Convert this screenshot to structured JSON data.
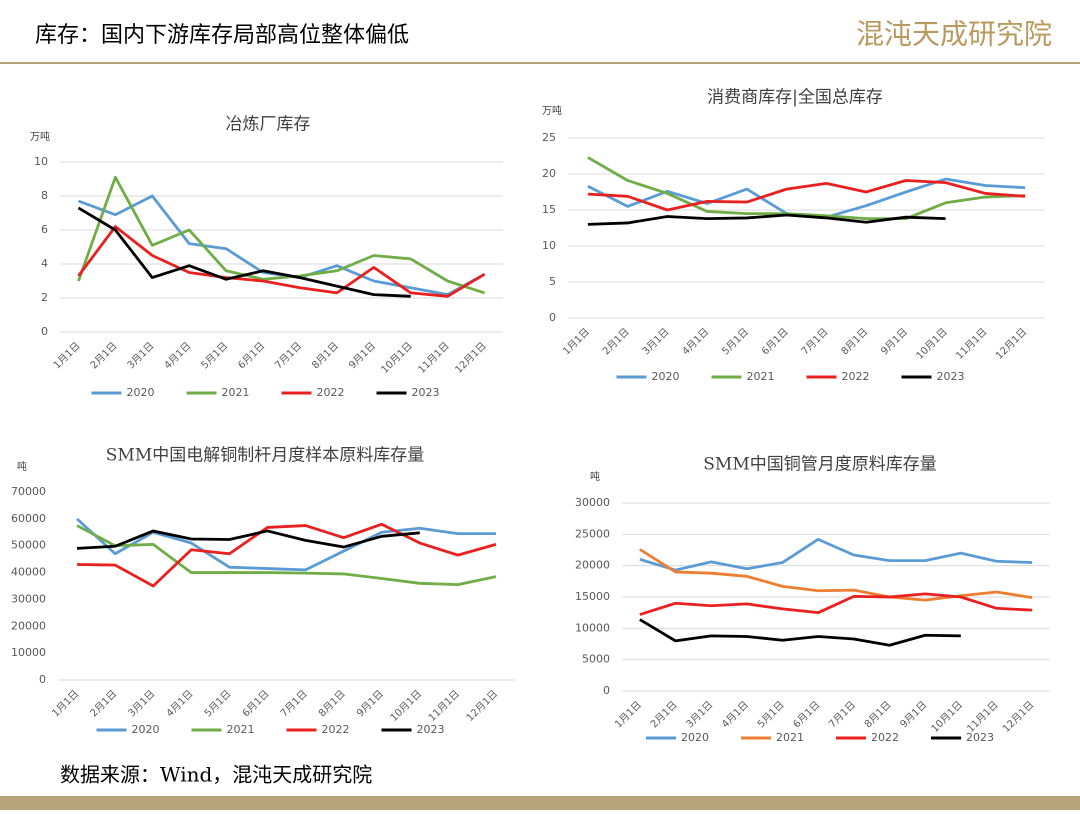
{
  "header": {
    "title": "库存：国内下游库存局部高位整体偏低",
    "logo": "混沌天成研究院"
  },
  "footer": {
    "source": "数据来源：Wind，混沌天成研究院"
  },
  "chart_data": [
    {
      "type": "line",
      "title": "冶炼厂库存",
      "ylabel": "万吨",
      "categories": [
        "1月1日",
        "2月1日",
        "3月1日",
        "4月1日",
        "5月1日",
        "6月1日",
        "7月1日",
        "8月1日",
        "9月1日",
        "10月1日",
        "11月1日",
        "12月1日"
      ],
      "ylim": [
        0,
        10
      ],
      "yticks": [
        0,
        2,
        4,
        6,
        8,
        10
      ],
      "grid": true,
      "legend": "bottom",
      "series": [
        {
          "name": "2020",
          "color": "#5b9bd5",
          "values": [
            7.7,
            6.9,
            8.0,
            5.2,
            4.9,
            3.5,
            3.2,
            3.9,
            3.0,
            2.6,
            2.2,
            3.4
          ]
        },
        {
          "name": "2021",
          "color": "#70ad47",
          "values": [
            3.0,
            9.1,
            5.1,
            6.0,
            3.6,
            3.1,
            3.3,
            3.6,
            4.5,
            4.3,
            3.0,
            2.3
          ]
        },
        {
          "name": "2022",
          "color": "#e8201f",
          "values": [
            3.3,
            6.2,
            4.5,
            3.5,
            3.2,
            3.0,
            2.6,
            2.3,
            3.8,
            2.3,
            2.1,
            3.4
          ]
        },
        {
          "name": "2023",
          "color": "#000000",
          "values": [
            7.3,
            6.0,
            3.2,
            3.9,
            3.1,
            3.6,
            3.2,
            2.7,
            2.2,
            2.1,
            null,
            null
          ]
        }
      ]
    },
    {
      "type": "line",
      "title": "消费商库存|全国总库存",
      "ylabel": "万吨",
      "categories": [
        "1月1日",
        "2月1日",
        "3月1日",
        "4月1日",
        "5月1日",
        "6月1日",
        "7月1日",
        "8月1日",
        "9月1日",
        "10月1日",
        "11月1日",
        "12月1日"
      ],
      "ylim": [
        0,
        25
      ],
      "yticks": [
        0,
        5,
        10,
        15,
        20,
        25
      ],
      "grid": true,
      "legend": "bottom",
      "series": [
        {
          "name": "2020",
          "color": "#5b9bd5",
          "values": [
            18.3,
            15.5,
            17.6,
            15.9,
            17.9,
            14.5,
            14.0,
            15.6,
            17.5,
            19.3,
            18.4,
            18.1
          ]
        },
        {
          "name": "2021",
          "color": "#70ad47",
          "values": [
            22.3,
            19.1,
            17.3,
            14.8,
            14.5,
            14.5,
            14.2,
            13.8,
            13.8,
            16.0,
            16.8,
            17.0
          ]
        },
        {
          "name": "2022",
          "color": "#e8201f",
          "values": [
            17.2,
            16.9,
            15.0,
            16.2,
            16.1,
            17.9,
            18.7,
            17.5,
            19.1,
            18.8,
            17.3,
            16.9
          ]
        },
        {
          "name": "2023",
          "color": "#000000",
          "values": [
            13.0,
            13.2,
            14.1,
            13.8,
            13.9,
            14.3,
            13.9,
            13.3,
            14.0,
            13.8,
            null,
            null
          ]
        }
      ]
    },
    {
      "type": "line",
      "title": "SMM中国电解铜制杆月度样本原料库存量",
      "ylabel": "吨",
      "categories": [
        "1月1日",
        "2月1日",
        "3月1日",
        "4月1日",
        "5月1日",
        "6月1日",
        "7月1日",
        "8月1日",
        "9月1日",
        "10月1日",
        "11月1日",
        "12月1日"
      ],
      "ylim": [
        0,
        70000
      ],
      "yticks": [
        0,
        10000,
        20000,
        30000,
        40000,
        50000,
        60000,
        70000
      ],
      "grid": false,
      "legend": "bottom",
      "series": [
        {
          "name": "2020",
          "color": "#5b9bd5",
          "values": [
            60000,
            47000,
            55000,
            51000,
            42000,
            41500,
            41000,
            48000,
            55000,
            56500,
            54500,
            54500
          ]
        },
        {
          "name": "2021",
          "color": "#70ad47",
          "values": [
            57500,
            50000,
            50500,
            40000,
            40000,
            40000,
            39800,
            39500,
            37800,
            36000,
            35500,
            38500
          ]
        },
        {
          "name": "2022",
          "color": "#e8201f",
          "values": [
            43000,
            42800,
            35000,
            48500,
            47000,
            56800,
            57500,
            53000,
            58000,
            51000,
            46500,
            50500
          ]
        },
        {
          "name": "2023",
          "color": "#000000",
          "values": [
            49000,
            49800,
            55500,
            52500,
            52300,
            55500,
            52000,
            49500,
            53500,
            54800,
            null,
            null
          ]
        }
      ]
    },
    {
      "type": "line",
      "title": "SMM中国铜管月度原料库存量",
      "ylabel": "吨",
      "categories": [
        "1月1日",
        "2月1日",
        "3月1日",
        "4月1日",
        "5月1日",
        "6月1日",
        "7月1日",
        "8月1日",
        "9月1日",
        "10月1日",
        "11月1日",
        "12月1日"
      ],
      "ylim": [
        0,
        30000
      ],
      "yticks": [
        0,
        5000,
        10000,
        15000,
        20000,
        25000,
        30000
      ],
      "grid": true,
      "legend": "bottom",
      "series": [
        {
          "name": "2020",
          "color": "#5b9bd5",
          "values": [
            21000,
            19300,
            20600,
            19500,
            20500,
            24200,
            21700,
            20800,
            20800,
            22000,
            20700,
            20500
          ]
        },
        {
          "name": "2021",
          "color": "#ed7d31",
          "values": [
            22600,
            19000,
            18800,
            18300,
            16700,
            16000,
            16100,
            15000,
            14500,
            15200,
            15800,
            14900
          ]
        },
        {
          "name": "2022",
          "color": "#e8201f",
          "values": [
            12200,
            14000,
            13600,
            13900,
            13100,
            12500,
            15100,
            15000,
            15500,
            15000,
            13200,
            12900
          ]
        },
        {
          "name": "2023",
          "color": "#000000",
          "values": [
            11400,
            8000,
            8800,
            8700,
            8100,
            8700,
            8300,
            7300,
            8900,
            8800,
            null,
            null
          ]
        }
      ]
    }
  ]
}
